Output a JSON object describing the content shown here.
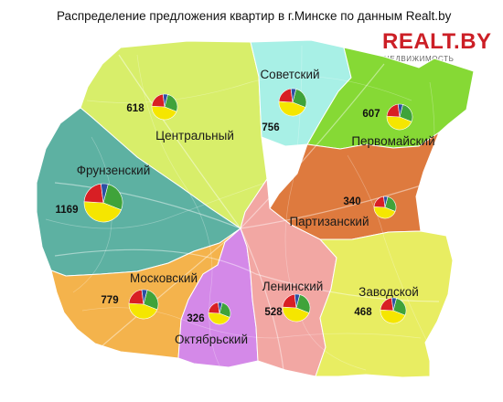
{
  "title": "Распределение предложения квартир в г.Минске по данным  Realt.by",
  "logo": {
    "main": "REALT.BY",
    "sub": "НЕДВИЖИМОСТЬ"
  },
  "colors": {
    "pie": [
      "#f5e600",
      "#d81f24",
      "#2c4fa3",
      "#3fa33a"
    ]
  },
  "districts": [
    {
      "name": "Центральный",
      "count": "618",
      "color": "#d8ee6a"
    },
    {
      "name": "Советский",
      "count": "756",
      "color": "#a8f0e6"
    },
    {
      "name": "Первомайский",
      "count": "607",
      "color": "#86d935"
    },
    {
      "name": "Фрунзенский",
      "count": "1169",
      "color": "#5db1a2"
    },
    {
      "name": "Партизанский",
      "count": "340",
      "color": "#de7a3e"
    },
    {
      "name": "Московский",
      "count": "779",
      "color": "#f4b34c"
    },
    {
      "name": "Ленинский",
      "count": "528",
      "color": "#f2a7a3"
    },
    {
      "name": "Заводской",
      "count": "468",
      "color": "#e8ed62"
    },
    {
      "name": "Октябрьский",
      "count": "326",
      "color": "#d489e8"
    }
  ]
}
